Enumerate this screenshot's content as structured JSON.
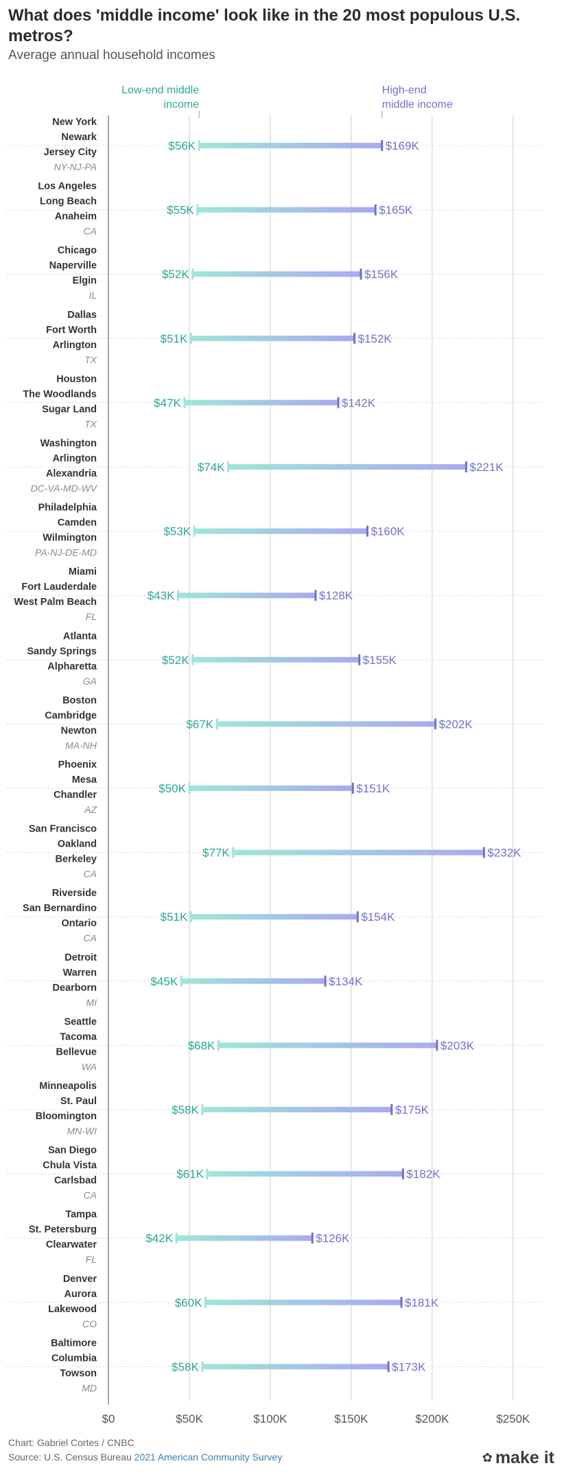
{
  "title": "What does 'middle income' look like in the 20 most populous U.S. metros?",
  "subtitle": "Average annual household incomes",
  "colors": {
    "low": "#2aa892",
    "high": "#7070d0",
    "lowBar": "#9fe6d8",
    "highBar": "#a9a9f0",
    "grid": "#cccccc",
    "axis": "#888888",
    "text": "#333333",
    "state": "#8a8a8a"
  },
  "chart_data": {
    "type": "dumbbell",
    "title": "What does 'middle income' look like in the 20 most populous U.S. metros?",
    "subtitle": "Average annual household incomes",
    "legend": {
      "low": "Low-end middle income",
      "high": "High-end middle income"
    },
    "xlim": [
      0,
      270000
    ],
    "xticks": [
      0,
      50000,
      100000,
      150000,
      200000,
      250000
    ],
    "xtick_labels": [
      "$0",
      "$50K",
      "$100K",
      "$150K",
      "$200K",
      "$250K"
    ],
    "metros": [
      {
        "lines": [
          "New York",
          "Newark",
          "Jersey City"
        ],
        "state": "NY-NJ-PA",
        "low": 56000,
        "high": 169000,
        "low_label": "$56K",
        "high_label": "$169K"
      },
      {
        "lines": [
          "Los Angeles",
          "Long Beach",
          "Anaheim"
        ],
        "state": "CA",
        "low": 55000,
        "high": 165000,
        "low_label": "$55K",
        "high_label": "$165K"
      },
      {
        "lines": [
          "Chicago",
          "Naperville",
          "Elgin"
        ],
        "state": "IL",
        "low": 52000,
        "high": 156000,
        "low_label": "$52K",
        "high_label": "$156K"
      },
      {
        "lines": [
          "Dallas",
          "Fort Worth",
          "Arlington"
        ],
        "state": "TX",
        "low": 51000,
        "high": 152000,
        "low_label": "$51K",
        "high_label": "$152K"
      },
      {
        "lines": [
          "Houston",
          "The Woodlands",
          "Sugar Land"
        ],
        "state": "TX",
        "low": 47000,
        "high": 142000,
        "low_label": "$47K",
        "high_label": "$142K"
      },
      {
        "lines": [
          "Washington",
          "Arlington",
          "Alexandria"
        ],
        "state": "DC-VA-MD-WV",
        "low": 74000,
        "high": 221000,
        "low_label": "$74K",
        "high_label": "$221K"
      },
      {
        "lines": [
          "Philadelphia",
          "Camden",
          "Wilmington"
        ],
        "state": "PA-NJ-DE-MD",
        "low": 53000,
        "high": 160000,
        "low_label": "$53K",
        "high_label": "$160K"
      },
      {
        "lines": [
          "Miami",
          "Fort Lauderdale",
          "West Palm Beach"
        ],
        "state": "FL",
        "low": 43000,
        "high": 128000,
        "low_label": "$43K",
        "high_label": "$128K"
      },
      {
        "lines": [
          "Atlanta",
          "Sandy Springs",
          "Alpharetta"
        ],
        "state": "GA",
        "low": 52000,
        "high": 155000,
        "low_label": "$52K",
        "high_label": "$155K"
      },
      {
        "lines": [
          "Boston",
          "Cambridge",
          "Newton"
        ],
        "state": "MA-NH",
        "low": 67000,
        "high": 202000,
        "low_label": "$67K",
        "high_label": "$202K"
      },
      {
        "lines": [
          "Phoenix",
          "Mesa",
          "Chandler"
        ],
        "state": "AZ",
        "low": 50000,
        "high": 151000,
        "low_label": "$50K",
        "high_label": "$151K"
      },
      {
        "lines": [
          "San Francisco",
          "Oakland",
          "Berkeley"
        ],
        "state": "CA",
        "low": 77000,
        "high": 232000,
        "low_label": "$77K",
        "high_label": "$232K"
      },
      {
        "lines": [
          "Riverside",
          "San Bernardino",
          "Ontario"
        ],
        "state": "CA",
        "low": 51000,
        "high": 154000,
        "low_label": "$51K",
        "high_label": "$154K"
      },
      {
        "lines": [
          "Detroit",
          "Warren",
          "Dearborn"
        ],
        "state": "MI",
        "low": 45000,
        "high": 134000,
        "low_label": "$45K",
        "high_label": "$134K"
      },
      {
        "lines": [
          "Seattle",
          "Tacoma",
          "Bellevue"
        ],
        "state": "WA",
        "low": 68000,
        "high": 203000,
        "low_label": "$68K",
        "high_label": "$203K"
      },
      {
        "lines": [
          "Minneapolis",
          "St. Paul",
          "Bloomington"
        ],
        "state": "MN-WI",
        "low": 58000,
        "high": 175000,
        "low_label": "$58K",
        "high_label": "$175K"
      },
      {
        "lines": [
          "San Diego",
          "Chula Vista",
          "Carlsbad"
        ],
        "state": "CA",
        "low": 61000,
        "high": 182000,
        "low_label": "$61K",
        "high_label": "$182K"
      },
      {
        "lines": [
          "Tampa",
          "St. Petersburg",
          "Clearwater"
        ],
        "state": "FL",
        "low": 42000,
        "high": 126000,
        "low_label": "$42K",
        "high_label": "$126K"
      },
      {
        "lines": [
          "Denver",
          "Aurora",
          "Lakewood"
        ],
        "state": "CO",
        "low": 60000,
        "high": 181000,
        "low_label": "$60K",
        "high_label": "$181K"
      },
      {
        "lines": [
          "Baltimore",
          "Columbia",
          "Towson"
        ],
        "state": "MD",
        "low": 58000,
        "high": 173000,
        "low_label": "$58K",
        "high_label": "$173K"
      }
    ]
  },
  "footer": {
    "credit": "Chart: Gabriel Cortes / CNBC",
    "source_prefix": "Source: U.S. Census Bureau",
    "source_link": "2021 American Community Survey",
    "logo": "make it"
  }
}
